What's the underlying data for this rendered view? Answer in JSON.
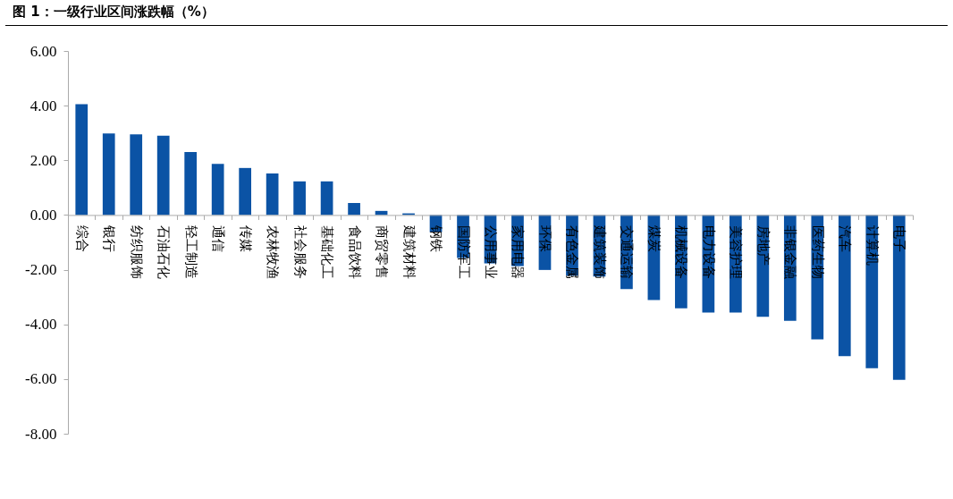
{
  "chart_data": {
    "type": "bar",
    "title": "图 1：一级行业区间涨跌幅（%）",
    "categories": [
      "综合",
      "银行",
      "纺织服饰",
      "石油石化",
      "轻工制造",
      "通信",
      "传媒",
      "农林牧渔",
      "社会服务",
      "基础化工",
      "食品饮料",
      "商贸零售",
      "建筑材料",
      "钢铁",
      "国防军工",
      "公用事业",
      "家用电器",
      "环保",
      "有色金属",
      "建筑装饰",
      "交通运输",
      "煤炭",
      "机械设备",
      "电力设备",
      "美容护理",
      "房地产",
      "非银金融",
      "医药生物",
      "汽车",
      "计算机",
      "电子"
    ],
    "values": [
      4.05,
      2.98,
      2.95,
      2.9,
      2.3,
      1.87,
      1.72,
      1.52,
      1.23,
      1.23,
      0.44,
      0.15,
      0.06,
      -0.63,
      -1.57,
      -1.77,
      -1.87,
      -2.01,
      -2.22,
      -2.25,
      -2.71,
      -3.11,
      -3.41,
      -3.57,
      -3.57,
      -3.72,
      -3.87,
      -4.55,
      -5.16,
      -5.6,
      -6.03
    ],
    "color": "#0b53a5",
    "ylim": [
      -8,
      6
    ],
    "yticks": [
      {
        "value": -8,
        "label": "-8.00"
      },
      {
        "value": -6,
        "label": "-6.00"
      },
      {
        "value": -4,
        "label": "-4.00"
      },
      {
        "value": -2,
        "label": "-2.00"
      },
      {
        "value": 0,
        "label": "0.00"
      },
      {
        "value": 2,
        "label": "2.00"
      },
      {
        "value": 4,
        "label": "4.00"
      },
      {
        "value": 6,
        "label": "6.00"
      }
    ],
    "grid": false
  }
}
